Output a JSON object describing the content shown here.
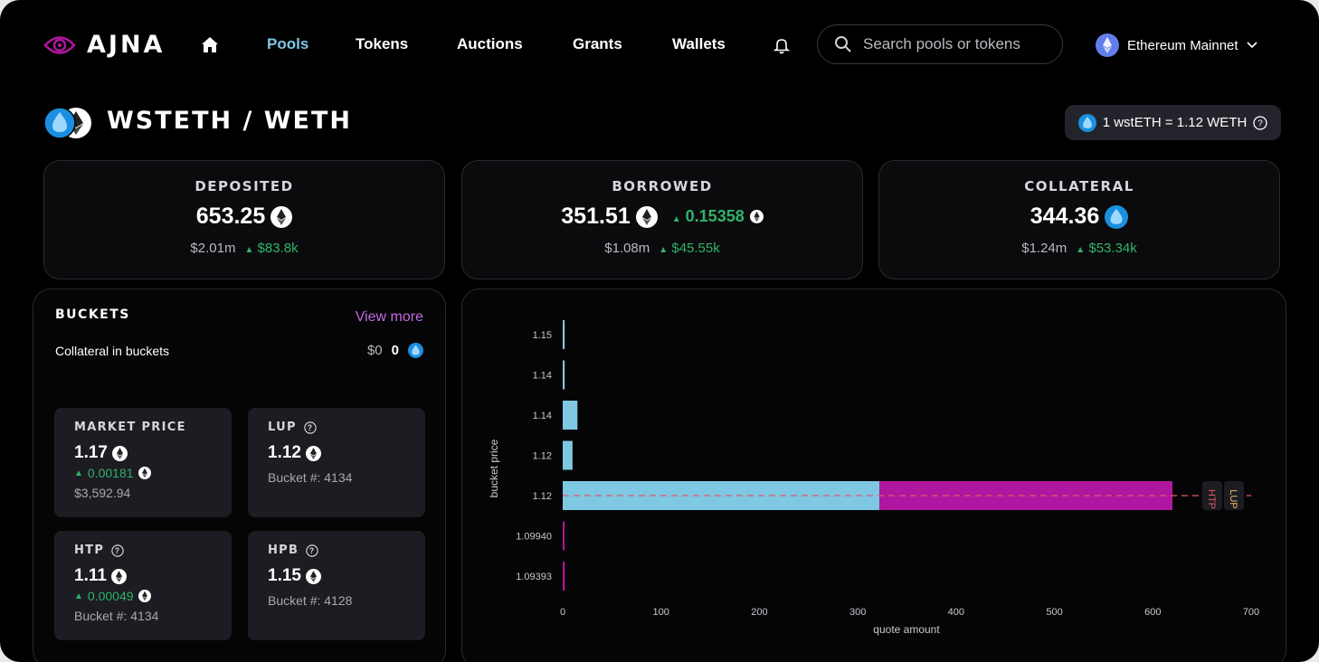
{
  "header": {
    "logo_text": "AJNA",
    "nav": [
      "Pools",
      "Tokens",
      "Auctions",
      "Grants",
      "Wallets"
    ],
    "active_nav": "Pools",
    "search_placeholder": "Search pools or tokens",
    "network": "Ethereum Mainnet"
  },
  "pool": {
    "title": "WSTETH / WETH",
    "rate": "1 wstETH = 1.12 WETH"
  },
  "stats": {
    "deposited": {
      "label": "DEPOSITED",
      "value": "653.25",
      "delta": "",
      "usd": "$2.01m",
      "usd_delta": "$83.8k"
    },
    "borrowed": {
      "label": "BORROWED",
      "value": "351.51",
      "delta": "0.15358",
      "usd": "$1.08m",
      "usd_delta": "$45.55k"
    },
    "collateral": {
      "label": "COLLATERAL",
      "value": "344.36",
      "delta": "",
      "usd": "$1.24m",
      "usd_delta": "$53.34k"
    }
  },
  "buckets": {
    "title": "BUCKETS",
    "view_more": "View more",
    "collateral_label": "Collateral in buckets",
    "collateral_usd": "$0",
    "collateral_amount": "0",
    "market_price": {
      "label": "MARKET PRICE",
      "value": "1.17",
      "delta": "0.00181",
      "sub": "$3,592.94"
    },
    "lup": {
      "label": "LUP",
      "value": "1.12",
      "sub": "Bucket #: 4134"
    },
    "htp": {
      "label": "HTP",
      "value": "1.11",
      "delta": "0.00049",
      "sub": "Bucket #: 4134"
    },
    "hpb": {
      "label": "HPB",
      "value": "1.15",
      "sub": "Bucket #: 4128"
    }
  },
  "colors": {
    "accent": "#7ec8e3",
    "collateral_bar": "#b0169f",
    "positive": "#2fb36a",
    "htp_line": "#e05a6a",
    "lup_label": "#f0b86a",
    "link": "#c36be0"
  },
  "chart_data": {
    "type": "bar",
    "orientation": "horizontal",
    "categories": [
      "1.15",
      "1.14",
      "1.14",
      "1.12",
      "1.12",
      "1.09940",
      "1.09393"
    ],
    "series": [
      {
        "values": [
          2,
          2,
          15,
          10,
          322,
          0,
          0
        ]
      },
      {
        "values": [
          0,
          0,
          0,
          0,
          298,
          1,
          2
        ]
      }
    ],
    "xlim": [
      0,
      700
    ],
    "xticks": [
      0,
      100,
      200,
      300,
      400,
      500,
      600,
      700
    ],
    "xlabel": "quote amount",
    "ylabel": "bucket price",
    "markers": [
      {
        "label": "HTP",
        "category_index": 4
      },
      {
        "label": "LUP",
        "category_index": 4
      }
    ]
  }
}
